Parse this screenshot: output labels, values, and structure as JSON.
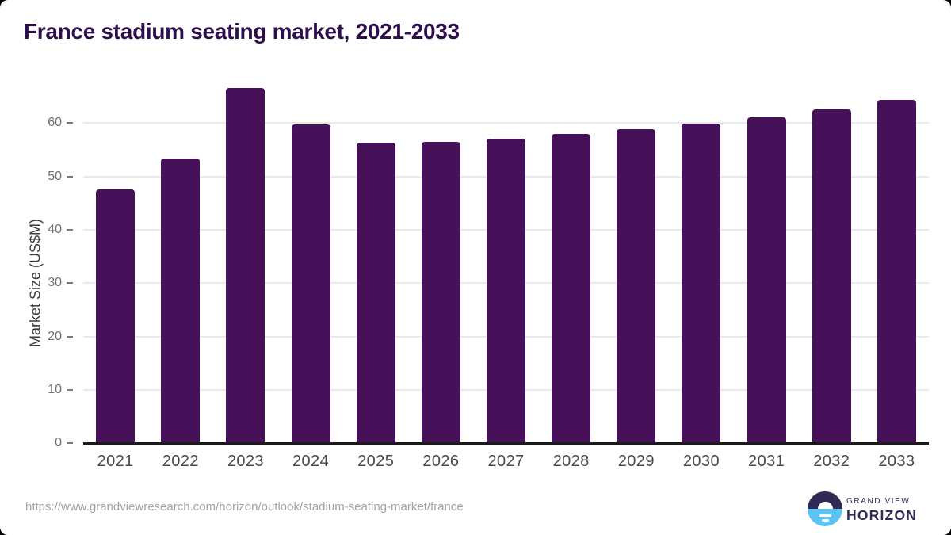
{
  "page": {
    "title": "France stadium seating market, 2021-2033",
    "source_url": "https://www.grandviewresearch.com/horizon/outlook/stadium-seating-market/france"
  },
  "logo": {
    "line1": "GRAND VIEW",
    "line2": "HORIZON"
  },
  "colors": {
    "bar": "#471159",
    "title": "#2f0e4d",
    "axis_line": "#1a1a1a",
    "gridline": "#e9e9e9",
    "tick": "#7a7a7a",
    "y_tick_label": "#707070",
    "x_tick_label": "#4a4a4a",
    "axis_title": "#3b3b3b",
    "url": "#a3a3a3",
    "logo_dark": "#312a54",
    "logo_blue": "#5bc4f1"
  },
  "chart_data": {
    "type": "bar",
    "title": "France stadium seating market, 2021-2033",
    "categories": [
      "2021",
      "2022",
      "2023",
      "2024",
      "2025",
      "2026",
      "2027",
      "2028",
      "2029",
      "2030",
      "2031",
      "2032",
      "2033"
    ],
    "values": [
      47.6,
      53.4,
      66.6,
      59.8,
      56.3,
      56.5,
      57.1,
      58.0,
      58.9,
      59.9,
      61.0,
      62.5,
      64.3
    ],
    "xlabel": "",
    "ylabel": "Market Size (US$M)",
    "ylim": [
      0,
      70
    ],
    "yticks": [
      0,
      10,
      20,
      30,
      40,
      50,
      60
    ],
    "grid": true,
    "legend": false,
    "bar_color": "#471159"
  }
}
